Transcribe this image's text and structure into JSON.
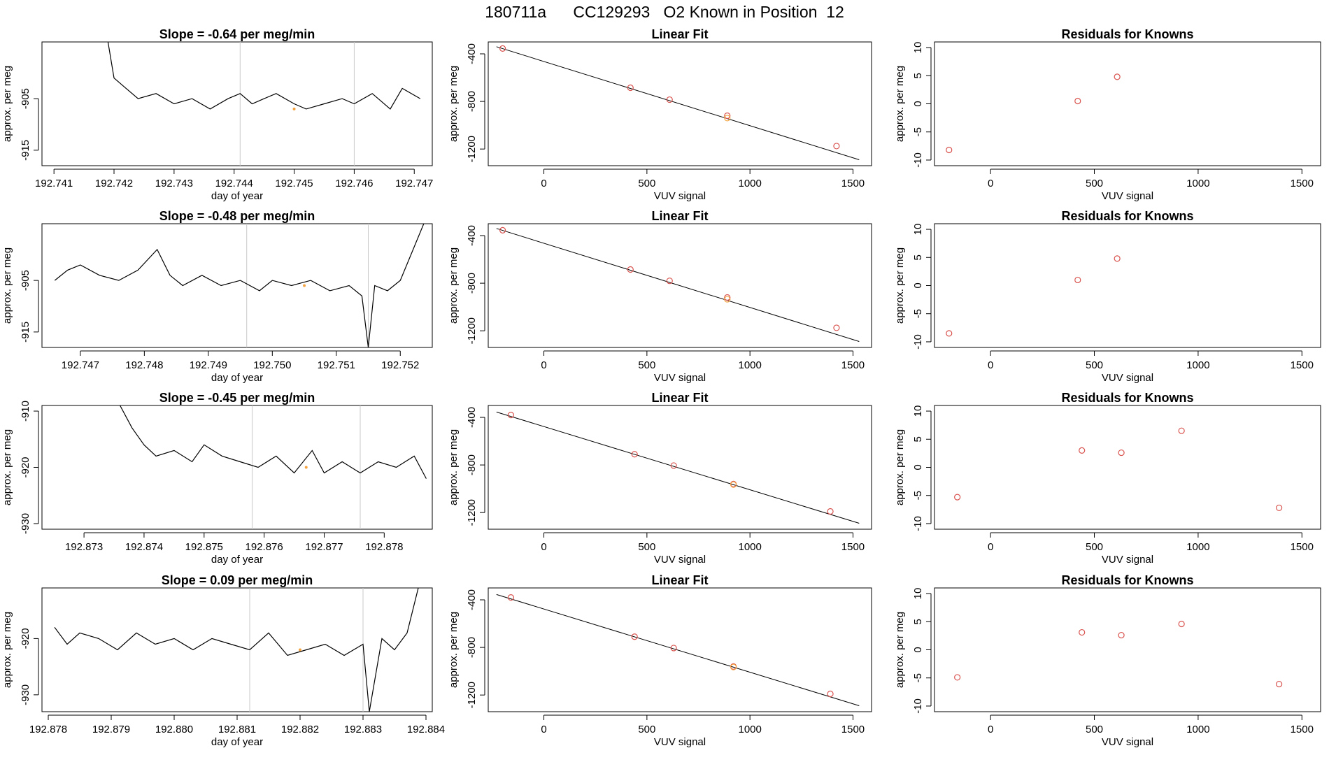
{
  "page": {
    "title": "180711a      CC129293   O2 Known in Position  12"
  },
  "chart_data": [
    {
      "type": "line",
      "title": "Slope =  -0.64  per meg/min",
      "xlabel": "day of year",
      "ylabel": "approx. per meg",
      "xlim": [
        192.7408,
        192.7473
      ],
      "ylim": [
        -918,
        -894
      ],
      "xticks": [
        "192.741",
        "192.742",
        "192.743",
        "192.744",
        "192.745",
        "192.746",
        "192.747"
      ],
      "xtick_values": [
        192.741,
        192.742,
        192.743,
        192.744,
        192.745,
        192.746,
        192.747
      ],
      "yticks": [
        "-905",
        "-915"
      ],
      "ytick_values": [
        -905,
        -915
      ],
      "vlines": [
        192.7441,
        192.746
      ],
      "series": [
        {
          "color": "#000000",
          "x": [
            192.7419,
            192.742,
            192.7422,
            192.7424,
            192.7427,
            192.743,
            192.7433,
            192.7436,
            192.7439,
            192.7441,
            192.7443,
            192.7445,
            192.7447,
            192.745,
            192.7452,
            192.7455,
            192.7458,
            192.746,
            192.7463,
            192.7466,
            192.7468,
            192.7471
          ],
          "y": [
            -894,
            -901,
            -903,
            -905,
            -904,
            -906,
            -905,
            -907,
            -905,
            -904,
            -906,
            -905,
            -904,
            -906,
            -907,
            -906,
            -905,
            -906,
            -904,
            -907,
            -903,
            -905
          ]
        }
      ],
      "markers": [
        {
          "x": 192.745,
          "y": -907,
          "color": "#f4a340"
        }
      ]
    },
    {
      "type": "scatter",
      "title": "Linear Fit",
      "xlabel": "VUV signal",
      "ylabel": "approx. per meg",
      "xlim": [
        -270,
        1590
      ],
      "ylim": [
        -1340,
        -300
      ],
      "xticks": [
        "0",
        "500",
        "1000",
        "1500"
      ],
      "xtick_values": [
        0,
        500,
        1000,
        1500
      ],
      "yticks": [
        "-400",
        "-800",
        "-1200"
      ],
      "ytick_values": [
        -400,
        -800,
        -1200
      ],
      "fit_line": {
        "x": [
          -230,
          1530
        ],
        "y": [
          -340,
          -1290
        ]
      },
      "x": [
        -200,
        420,
        610,
        890,
        890,
        1420
      ],
      "y": [
        -355,
        -685,
        -785,
        -920,
        -940,
        -1175
      ],
      "colors": [
        "#d9534f",
        "#d9534f",
        "#d9534f",
        "#d9534f",
        "#f4a340",
        "#d9534f"
      ]
    },
    {
      "type": "scatter",
      "title": "Residuals for Knowns",
      "xlabel": "VUV signal",
      "ylabel": "approx. per meg",
      "xlim": [
        -270,
        1590
      ],
      "ylim": [
        -11,
        11
      ],
      "xticks": [
        "0",
        "500",
        "1000",
        "1500"
      ],
      "xtick_values": [
        0,
        500,
        1000,
        1500
      ],
      "yticks": [
        "-10",
        "-5",
        "0",
        "5",
        "10"
      ],
      "ytick_values": [
        -10,
        -5,
        0,
        5,
        10
      ],
      "x": [
        -200,
        420,
        610
      ],
      "y": [
        -8.2,
        0.5,
        4.8
      ],
      "colors": [
        "#d9534f",
        "#d9534f",
        "#d9534f"
      ]
    },
    {
      "type": "line",
      "title": "Slope =  -0.48  per meg/min",
      "xlabel": "day of year",
      "ylabel": "approx. per meg",
      "xlim": [
        192.7464,
        192.7525
      ],
      "ylim": [
        -918,
        -894
      ],
      "xticks": [
        "192.747",
        "192.748",
        "192.749",
        "192.750",
        "192.751",
        "192.752"
      ],
      "xtick_values": [
        192.747,
        192.748,
        192.749,
        192.75,
        192.751,
        192.752
      ],
      "yticks": [
        "-905",
        "-915"
      ],
      "ytick_values": [
        -905,
        -915
      ],
      "vlines": [
        192.7496,
        192.7515
      ],
      "series": [
        {
          "color": "#000000",
          "x": [
            192.7466,
            192.7468,
            192.747,
            192.7473,
            192.7476,
            192.7479,
            192.7482,
            192.7484,
            192.7486,
            192.7489,
            192.7492,
            192.7495,
            192.7498,
            192.75,
            192.7503,
            192.7506,
            192.7509,
            192.7512,
            192.7514,
            192.7515,
            192.7516,
            192.7518,
            192.752,
            192.7522,
            192.7524
          ],
          "y": [
            -905,
            -903,
            -902,
            -904,
            -905,
            -903,
            -899,
            -904,
            -906,
            -904,
            -906,
            -905,
            -907,
            -905,
            -906,
            -905,
            -907,
            -906,
            -908,
            -918,
            -906,
            -907,
            -905,
            -899,
            -893
          ]
        }
      ],
      "markers": [
        {
          "x": 192.7505,
          "y": -906,
          "color": "#f4a340"
        }
      ]
    },
    {
      "type": "scatter",
      "title": "Linear Fit",
      "xlabel": "VUV signal",
      "ylabel": "approx. per meg",
      "xlim": [
        -270,
        1590
      ],
      "ylim": [
        -1340,
        -300
      ],
      "xticks": [
        "0",
        "500",
        "1000",
        "1500"
      ],
      "xtick_values": [
        0,
        500,
        1000,
        1500
      ],
      "yticks": [
        "-400",
        "-800",
        "-1200"
      ],
      "ytick_values": [
        -400,
        -800,
        -1200
      ],
      "fit_line": {
        "x": [
          -230,
          1530
        ],
        "y": [
          -340,
          -1290
        ]
      },
      "x": [
        -200,
        420,
        610,
        890,
        890,
        1420
      ],
      "y": [
        -355,
        -685,
        -780,
        -920,
        -935,
        -1175
      ],
      "colors": [
        "#d9534f",
        "#d9534f",
        "#d9534f",
        "#d9534f",
        "#f4a340",
        "#d9534f"
      ]
    },
    {
      "type": "scatter",
      "title": "Residuals for Knowns",
      "xlabel": "VUV signal",
      "ylabel": "approx. per meg",
      "xlim": [
        -270,
        1590
      ],
      "ylim": [
        -11,
        11
      ],
      "xticks": [
        "0",
        "500",
        "1000",
        "1500"
      ],
      "xtick_values": [
        0,
        500,
        1000,
        1500
      ],
      "yticks": [
        "-10",
        "-5",
        "0",
        "5",
        "10"
      ],
      "ytick_values": [
        -10,
        -5,
        0,
        5,
        10
      ],
      "x": [
        -200,
        420,
        610
      ],
      "y": [
        -8.5,
        1.0,
        4.8
      ],
      "colors": [
        "#d9534f",
        "#d9534f",
        "#d9534f"
      ]
    },
    {
      "type": "line",
      "title": "Slope =  -0.45  per meg/min",
      "xlabel": "day of year",
      "ylabel": "approx. per meg",
      "xlim": [
        192.8723,
        192.8788
      ],
      "ylim": [
        -931,
        -909
      ],
      "xticks": [
        "192.873",
        "192.874",
        "192.875",
        "192.876",
        "192.877",
        "192.878"
      ],
      "xtick_values": [
        192.873,
        192.874,
        192.875,
        192.876,
        192.877,
        192.878
      ],
      "yticks": [
        "-910",
        "-920",
        "-930"
      ],
      "ytick_values": [
        -910,
        -920,
        -930
      ],
      "vlines": [
        192.8758,
        192.8776
      ],
      "series": [
        {
          "color": "#000000",
          "x": [
            192.8736,
            192.8738,
            192.874,
            192.8742,
            192.8745,
            192.8748,
            192.875,
            192.8753,
            192.8756,
            192.8759,
            192.8762,
            192.8765,
            192.8768,
            192.877,
            192.8773,
            192.8776,
            192.8779,
            192.8782,
            192.8785,
            192.8787
          ],
          "y": [
            -909,
            -913,
            -916,
            -918,
            -917,
            -919,
            -916,
            -918,
            -919,
            -920,
            -918,
            -921,
            -917,
            -921,
            -919,
            -921,
            -919,
            -920,
            -918,
            -922
          ]
        }
      ],
      "markers": [
        {
          "x": 192.8767,
          "y": -920,
          "color": "#f4a340"
        }
      ]
    },
    {
      "type": "scatter",
      "title": "Linear Fit",
      "xlabel": "VUV signal",
      "ylabel": "approx. per meg",
      "xlim": [
        -270,
        1590
      ],
      "ylim": [
        -1340,
        -300
      ],
      "xticks": [
        "0",
        "500",
        "1000",
        "1500"
      ],
      "xtick_values": [
        0,
        500,
        1000,
        1500
      ],
      "yticks": [
        "-400",
        "-800",
        "-1200"
      ],
      "ytick_values": [
        -400,
        -800,
        -1200
      ],
      "fit_line": {
        "x": [
          -230,
          1530
        ],
        "y": [
          -355,
          -1290
        ]
      },
      "x": [
        -160,
        440,
        630,
        920,
        920,
        1390
      ],
      "y": [
        -380,
        -710,
        -805,
        -960,
        -965,
        -1190
      ],
      "colors": [
        "#d9534f",
        "#d9534f",
        "#d9534f",
        "#d9534f",
        "#f4a340",
        "#d9534f"
      ]
    },
    {
      "type": "scatter",
      "title": "Residuals for Knowns",
      "xlabel": "VUV signal",
      "ylabel": "approx. per meg",
      "xlim": [
        -270,
        1590
      ],
      "ylim": [
        -11,
        11
      ],
      "xticks": [
        "0",
        "500",
        "1000",
        "1500"
      ],
      "xtick_values": [
        0,
        500,
        1000,
        1500
      ],
      "yticks": [
        "-10",
        "-5",
        "0",
        "5",
        "10"
      ],
      "ytick_values": [
        -10,
        -5,
        0,
        5,
        10
      ],
      "x": [
        -160,
        440,
        630,
        920,
        1390
      ],
      "y": [
        -5.3,
        3.0,
        2.6,
        6.5,
        -7.2
      ],
      "colors": [
        "#d9534f",
        "#d9534f",
        "#d9534f",
        "#d9534f",
        "#d9534f"
      ]
    },
    {
      "type": "line",
      "title": "Slope =  0.09  per meg/min",
      "xlabel": "day of year",
      "ylabel": "approx. per meg",
      "xlim": [
        192.8779,
        192.8841
      ],
      "ylim": [
        -933,
        -911
      ],
      "xticks": [
        "192.878",
        "192.879",
        "192.880",
        "192.881",
        "192.882",
        "192.883",
        "192.884"
      ],
      "xtick_values": [
        192.878,
        192.879,
        192.88,
        192.881,
        192.882,
        192.883,
        192.884
      ],
      "yticks": [
        "-920",
        "-930"
      ],
      "ytick_values": [
        -920,
        -930
      ],
      "vlines": [
        192.8812,
        192.883
      ],
      "series": [
        {
          "color": "#000000",
          "x": [
            192.8781,
            192.8783,
            192.8785,
            192.8788,
            192.8791,
            192.8794,
            192.8797,
            192.88,
            192.8803,
            192.8806,
            192.8809,
            192.8812,
            192.8815,
            192.8818,
            192.8821,
            192.8824,
            192.8827,
            192.883,
            192.8831,
            192.8833,
            192.8835,
            192.8837,
            192.8839
          ],
          "y": [
            -918,
            -921,
            -919,
            -920,
            -922,
            -919,
            -921,
            -920,
            -922,
            -920,
            -921,
            -922,
            -919,
            -923,
            -922,
            -921,
            -923,
            -921,
            -933,
            -920,
            -922,
            -919,
            -910
          ]
        }
      ],
      "markers": [
        {
          "x": 192.882,
          "y": -922,
          "color": "#f4a340"
        }
      ]
    },
    {
      "type": "scatter",
      "title": "Linear Fit",
      "xlabel": "VUV signal",
      "ylabel": "approx. per meg",
      "xlim": [
        -270,
        1590
      ],
      "ylim": [
        -1340,
        -300
      ],
      "xticks": [
        "0",
        "500",
        "1000",
        "1500"
      ],
      "xtick_values": [
        0,
        500,
        1000,
        1500
      ],
      "yticks": [
        "-400",
        "-800",
        "-1200"
      ],
      "ytick_values": [
        -400,
        -800,
        -1200
      ],
      "fit_line": {
        "x": [
          -230,
          1530
        ],
        "y": [
          -355,
          -1290
        ]
      },
      "x": [
        -160,
        440,
        630,
        920,
        920,
        1390
      ],
      "y": [
        -380,
        -710,
        -805,
        -960,
        -965,
        -1190
      ],
      "colors": [
        "#d9534f",
        "#d9534f",
        "#d9534f",
        "#d9534f",
        "#f4a340",
        "#d9534f"
      ]
    },
    {
      "type": "scatter",
      "title": "Residuals for Knowns",
      "xlabel": "VUV signal",
      "ylabel": "approx. per meg",
      "xlim": [
        -270,
        1590
      ],
      "ylim": [
        -11,
        11
      ],
      "xticks": [
        "0",
        "500",
        "1000",
        "1500"
      ],
      "xtick_values": [
        0,
        500,
        1000,
        1500
      ],
      "yticks": [
        "-10",
        "-5",
        "0",
        "5",
        "10"
      ],
      "ytick_values": [
        -10,
        -5,
        0,
        5,
        10
      ],
      "x": [
        -160,
        440,
        630,
        920,
        1390
      ],
      "y": [
        -4.9,
        3.1,
        2.6,
        4.6,
        -6.1
      ],
      "colors": [
        "#d9534f",
        "#d9534f",
        "#d9534f",
        "#d9534f",
        "#d9534f"
      ]
    }
  ]
}
